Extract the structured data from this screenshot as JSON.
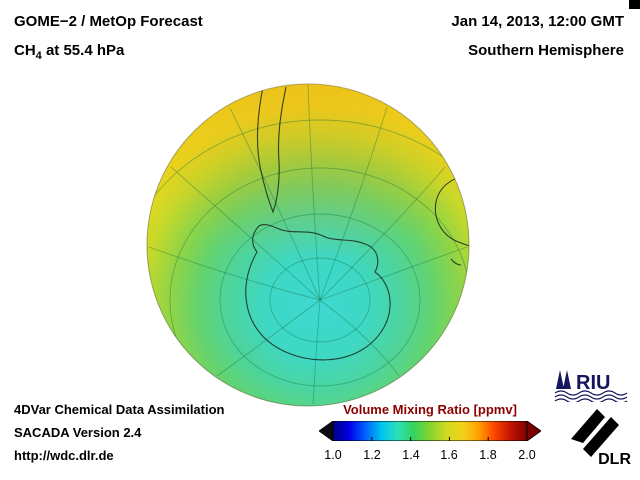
{
  "header": {
    "title": "GOME−2 / MetOp Forecast",
    "species_prefix": "CH",
    "species_sub": "4",
    "species_suffix": " at 55.4 hPa",
    "datetime": "Jan 14, 2013, 12:00 GMT",
    "hemisphere": "Southern Hemisphere"
  },
  "footer": {
    "line1": "4DVar Chemical Data Assimilation",
    "line2": "SACADA Version 2.4",
    "line3": "http://wdc.dlr.de"
  },
  "colorbar": {
    "title": "Volume Mixing Ratio [ppmv]",
    "title_color": "#8b0000",
    "ticks": [
      "1.0",
      "1.2",
      "1.4",
      "1.6",
      "1.8",
      "2.0"
    ],
    "gradient_colors": [
      "#00007f",
      "#0000e8",
      "#0060ff",
      "#00c4f0",
      "#2be0b8",
      "#34d35c",
      "#86d42e",
      "#cfda20",
      "#f2d31a",
      "#ffa000",
      "#ff4400",
      "#c01400",
      "#7f0000"
    ],
    "left_arrow_color": "#0a0a14",
    "right_arrow_color": "#7a0000"
  },
  "logos": {
    "riu_text": "RIU",
    "dlr_text": "DLR"
  },
  "chart_data": {
    "type": "heatmap",
    "title": "GOME−2 / MetOp Forecast — CH4 at 55.4 hPa",
    "datetime": "Jan 14, 2013, 12:00 GMT",
    "projection": "orthographic globe, Southern Hemisphere (south polar view)",
    "variable": "CH4 volume mixing ratio",
    "units": "ppmv",
    "colorbar_range": [
      1.0,
      2.0
    ],
    "colorbar_ticks": [
      1.0,
      1.2,
      1.4,
      1.6,
      1.8,
      2.0
    ],
    "field_summary": [
      {
        "region": "low latitudes / outer rim of hemisphere",
        "approx_value_ppmv": 1.75,
        "color": "#ecd41b"
      },
      {
        "region": "mid latitudes (~40-60S) band",
        "approx_value_ppmv": 1.55,
        "color": "#5ed36e"
      },
      {
        "region": "Antarctic polar vortex region",
        "approx_value_ppmv": 1.35,
        "color": "#3ed8d2"
      }
    ],
    "overlays": [
      "coastlines (South America, Antarctica, Australia)",
      "latitude-longitude graticule"
    ],
    "legend_position": "bottom-right, horizontal colorbar with out-of-range arrow ends"
  }
}
